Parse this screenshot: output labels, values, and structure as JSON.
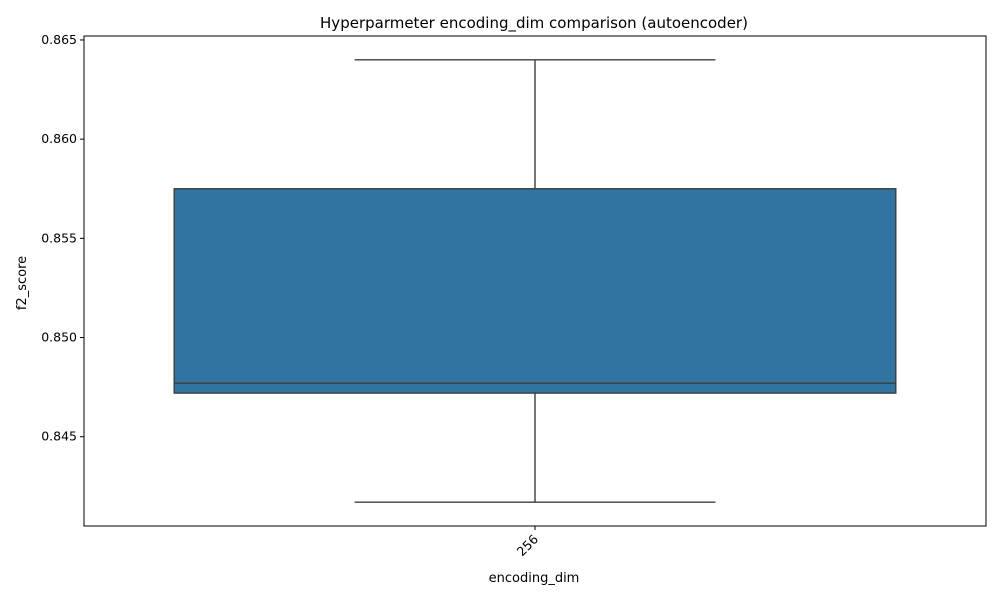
{
  "chart_data": {
    "type": "box",
    "title": "Hyperparmeter encoding_dim comparison (autoencoder)",
    "xlabel": "encoding_dim",
    "ylabel": "f2_score",
    "categories": [
      "256"
    ],
    "boxes": [
      {
        "category": "256",
        "whisker_low": 0.8417,
        "q1": 0.8472,
        "median": 0.8477,
        "q3": 0.8575,
        "whisker_high": 0.864
      }
    ],
    "ylim": [
      0.8405,
      0.8652
    ],
    "yticks": [
      {
        "value": 0.845,
        "label": "0.845"
      },
      {
        "value": 0.85,
        "label": "0.850"
      },
      {
        "value": 0.855,
        "label": "0.855"
      },
      {
        "value": 0.86,
        "label": "0.860"
      },
      {
        "value": 0.865,
        "label": "0.865"
      }
    ],
    "xtick_rotation": 45,
    "grid": false,
    "colors": {
      "box_fill": "#3274a1",
      "lines": "#3d3d3d"
    }
  }
}
